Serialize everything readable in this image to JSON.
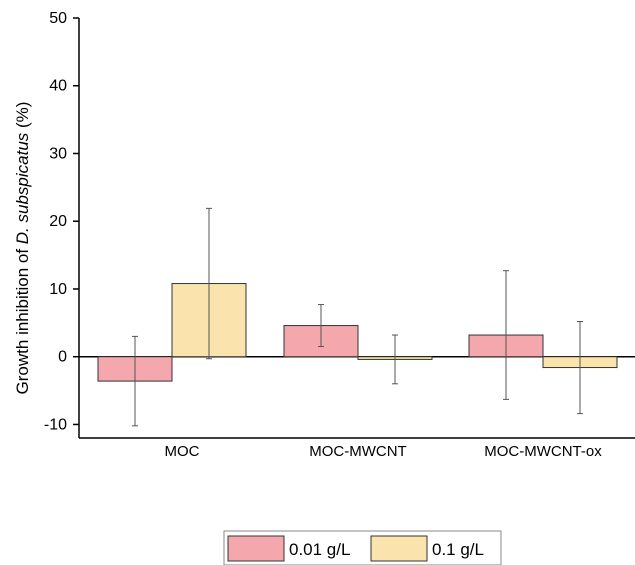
{
  "chart_data": {
    "type": "bar",
    "categories": [
      "MOC",
      "MOC-MWCNT",
      "MOC-MWCNT-ox"
    ],
    "series": [
      {
        "name": "0.01 g/L",
        "color": "#f4a7ad",
        "values": [
          -3.6,
          4.6,
          3.2
        ],
        "error": [
          6.6,
          3.1,
          9.5
        ]
      },
      {
        "name": "0.1 g/L",
        "color": "#fae3ac",
        "values": [
          10.8,
          -0.4,
          -1.6
        ],
        "error": [
          11.1,
          3.6,
          6.8
        ]
      }
    ],
    "ylabel_prefix": "Growth inhibition of ",
    "ylabel_italic": "D. subspicatus",
    "ylabel_suffix": " (%)",
    "ylim": [
      -12,
      50
    ],
    "yticks": [
      "50",
      "40",
      "30",
      "20",
      "10",
      "0",
      "-10"
    ],
    "ytick_values": [
      50,
      40,
      30,
      20,
      10,
      0,
      -10
    ],
    "legend_position": "bottom-center",
    "grid": false
  }
}
